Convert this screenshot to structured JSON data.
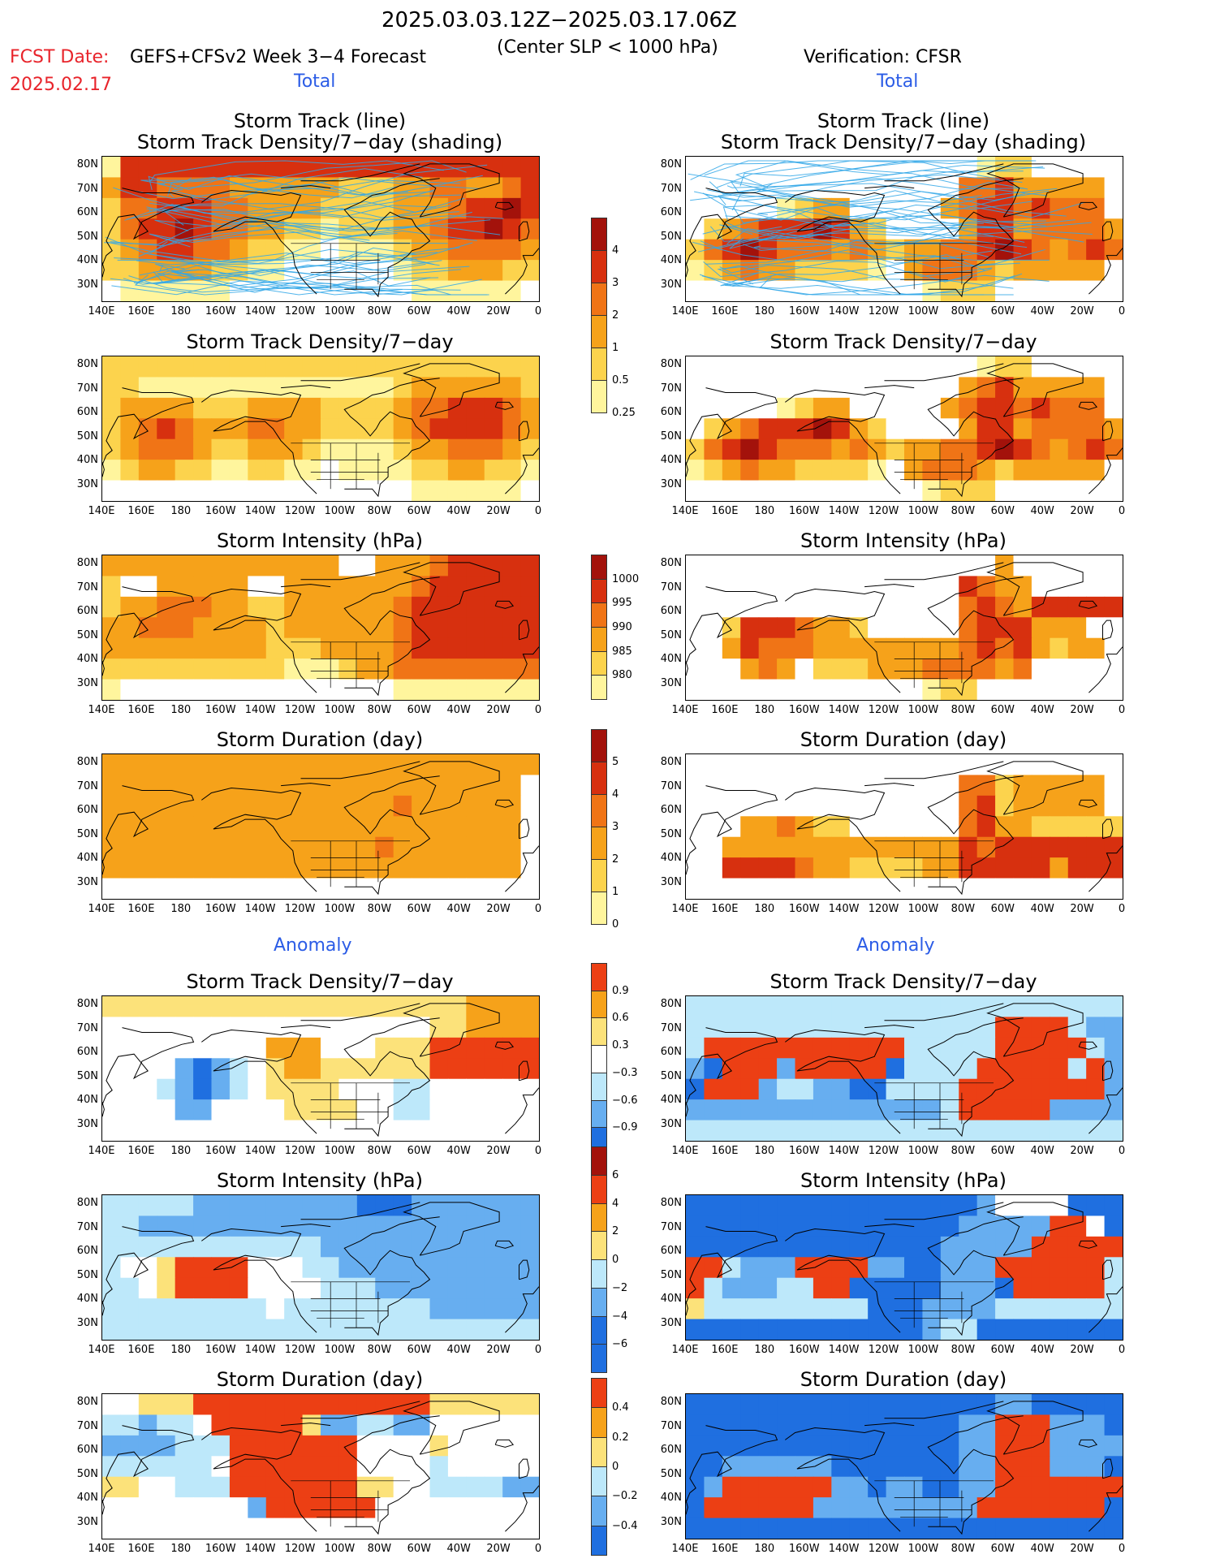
{
  "header": {
    "period": "2025.03.03.12Z−2025.03.17.06Z",
    "fcst_date_label": "FCST Date:",
    "fcst_date": "2025.02.17",
    "model_title": "GEFS+CFSv2 Week 3−4 Forecast",
    "condition": "(Center SLP < 1000 hPa)",
    "verification": "Verification: CFSR"
  },
  "sections": {
    "total": "Total",
    "anomaly": "Anomaly"
  },
  "axes": {
    "x_ticks": [
      "140E",
      "160E",
      "180",
      "160W",
      "140W",
      "120W",
      "100W",
      "80W",
      "60W",
      "40W",
      "20W",
      "0"
    ],
    "y_ticks": [
      "80N",
      "70N",
      "60N",
      "50N",
      "40N",
      "30N"
    ]
  },
  "colors": {
    "total_scale": [
      "#fff59d",
      "#fcd34d",
      "#f6a21a",
      "#f07416",
      "#d7300f",
      "#a3120b"
    ],
    "anomaly_scale": [
      "#1f6fe0",
      "#67aef0",
      "#bde8fa",
      "#ffffff",
      "#fce27a",
      "#f6a21a",
      "#ec3f14"
    ],
    "track_line": "#31a7e8",
    "coast": "#000000"
  },
  "colorbars": [
    {
      "id": "density_total",
      "labels": [
        "4",
        "3",
        "2",
        "1",
        "0.5",
        "0.25"
      ]
    },
    {
      "id": "intensity_total",
      "labels": [
        "1000",
        "995",
        "990",
        "985",
        "980"
      ]
    },
    {
      "id": "duration_total",
      "labels": [
        "5",
        "4",
        "3",
        "2",
        "1",
        "0"
      ]
    },
    {
      "id": "density_anom",
      "labels": [
        "0.9",
        "0.6",
        "0.3",
        "−0.3",
        "−0.6",
        "−0.9"
      ]
    },
    {
      "id": "intensity_anom",
      "labels": [
        "6",
        "4",
        "2",
        "0",
        "−2",
        "−4",
        "−6"
      ]
    },
    {
      "id": "duration_anom",
      "labels": [
        "0.4",
        "0.2",
        "0",
        "−0.2",
        "−0.4"
      ]
    }
  ],
  "chart_data": [
    {
      "type": "heatmap",
      "panel": "forecast_total_track",
      "title": "Storm Track (line)",
      "subtitle": "Storm Track Density/7−day (shading)",
      "scale": "total",
      "lines": true,
      "grid": [
        "155555555555555555555555",
        "355444433333322233443345",
        "244555443333222233345565",
        "245565443322122233455654",
        "234554432211011123344443",
        "223333221100000012233322",
        "011111100000000001111110"
      ]
    },
    {
      "type": "heatmap",
      "panel": "verif_total_track",
      "title": "Storm Track (line)",
      "subtitle": "Storm Track Density/7−day (shading)",
      "scale": "total",
      "lines": true,
      "grid": [
        "000000000000000012200000",
        "000000000000000445333330",
        "000001233000003455454440",
        "023455565320000355344443",
        "245654443432334456543454",
        "123433222210344432333330",
        "000000000000012220000000"
      ]
    },
    {
      "type": "heatmap",
      "panel": "forecast_total_density",
      "title": "Storm Track Density/7−day",
      "scale": "total",
      "grid": [
        "222222222222222222222222",
        "221111111111111123333332",
        "233332223333222234455543",
        "234543334433222234555543",
        "234443223332111123344432",
        "123322112211011112233221",
        "000000000000000001111110"
      ]
    },
    {
      "type": "heatmap",
      "panel": "verif_total_density",
      "title": "Storm Track Density/7−day",
      "scale": "total",
      "grid": [
        "000000000000000012200000",
        "000000000000000345333330",
        "000001233000003455454440",
        "023455565320000355344443",
        "245654443432334456543454",
        "123433222210344432333330",
        "000000000000012220000000"
      ]
    },
    {
      "type": "heatmap",
      "panel": "forecast_total_intensity",
      "title": "Storm Intensity (hPa)",
      "scale": "total",
      "grid": [
        "333333333333300333455555",
        "200333330033333334555555",
        "233444332233333345555555",
        "334443333233333345555555",
        "333333333222333345555555",
        "222222222211123344444444",
        "100000000000000011111111"
      ]
    },
    {
      "type": "heatmap",
      "panel": "verif_total_intensity",
      "title": "Storm Intensity (hPa)",
      "scale": "total",
      "grid": [
        "000000000000000003000000",
        "000000000000000543300000",
        "000000000000000454355555",
        "002555433200000455533300",
        "003544433333333454532330",
        "000343022233344443400000",
        "000000000000012200000000"
      ]
    },
    {
      "type": "heatmap",
      "panel": "forecast_total_duration",
      "title": "Storm Duration (day)",
      "scale": "total",
      "grid": [
        "333333333333333333333333",
        "333333333333333333333330",
        "333333333333333343333330",
        "333333333333333333333330",
        "333333333333333433333330",
        "333333333333333333333330",
        "000000000000000000000000"
      ]
    },
    {
      "type": "heatmap",
      "panel": "verif_total_duration",
      "title": "Storm Duration (day)",
      "scale": "total",
      "grid": [
        "000000000000000000000000",
        "000000000000000442333330",
        "000000000000000452333330",
        "000334322000000453322222",
        "003333333333333545555555",
        "005555433222233555553555",
        "000000000000000000000000"
      ]
    },
    {
      "type": "heatmap",
      "panel": "forecast_anom_density",
      "title": "Storm Track Density/7−day",
      "scale": "anomaly",
      "grid": [
        "444444444444444444445555",
        "333333333333333333445555",
        "333333333555333444666666",
        "333310123455444444666666",
        "333210123444433322333333",
        "333311333344443322333333",
        "333333333333333333333333"
      ]
    },
    {
      "type": "heatmap",
      "panel": "verif_anom_density",
      "title": "Storm Track Density/7−day",
      "scale": "anomaly",
      "grid": [
        "222222222222222222222222",
        "222222222222222226666211",
        "266666666666222226666621",
        "106661666660222266666261",
        "066612211002222666666661",
        "111111111111112666661111",
        "222222222222222222222222"
      ]
    },
    {
      "type": "heatmap",
      "panel": "forecast_anom_intensity",
      "title": "Storm Intensity (hPa)",
      "scale": "anomaly",
      "grid": [
        "222221111111110001111111",
        "221111111111111111111111",
        "222222222222111111111111",
        "233466663332211111111111",
        "223466663333222111111111",
        "222222222322222222111111",
        "222222222222222222222222"
      ]
    },
    {
      "type": "heatmap",
      "panel": "verif_anom_intensity",
      "title": "Storm Intensity (hPa)",
      "scale": "anomaly",
      "grid": [
        "000000000000000013333000",
        "000000000000000111116630",
        "000000000000001111166666",
        "662111666611001116666662",
        "621112266000001110666662",
        "422222222200011112222222",
        "000000000000012200000000"
      ]
    },
    {
      "type": "heatmap",
      "panel": "forecast_anom_duration",
      "title": "Storm Duration (day)",
      "scale": "anomaly",
      "grid": [
        "334446666666666666444444",
        "221223666664112211333333",
        "111122266666663333433333",
        "222222366666663333233333",
        "443322266666664433222211",
        "333333331666666333333333",
        "333333333333333333333333"
      ]
    },
    {
      "type": "heatmap",
      "panel": "verif_anom_duration",
      "title": "Storm Duration (day)",
      "scale": "anomaly",
      "grid": [
        "000000000000000001100000",
        "000000000000000116661110",
        "000000000000000116661111",
        "001111110000000116661110",
        "016666661101100116666666",
        "066666611111111166666660",
        "000000000000000000000000"
      ]
    }
  ]
}
